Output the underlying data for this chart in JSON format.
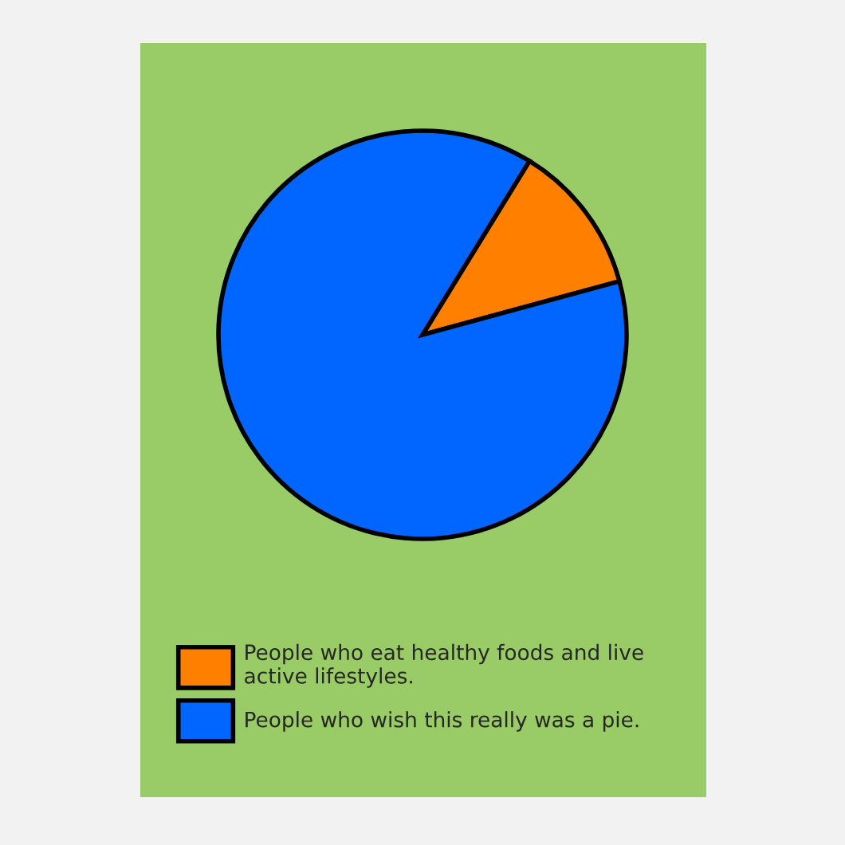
{
  "chart_data": {
    "type": "pie",
    "categories": [
      "People who eat healthy foods and live active lifestyles.",
      "People who wish this really was a pie."
    ],
    "values": [
      12,
      88
    ],
    "colors": [
      "#ff8000",
      "#0066ff"
    ],
    "legend": "bottom"
  }
}
